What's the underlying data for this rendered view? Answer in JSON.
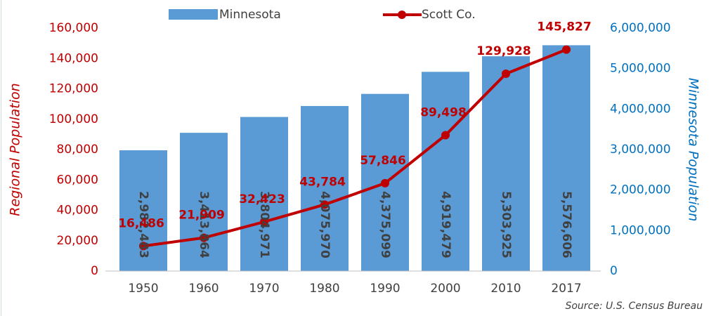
{
  "chart_data": {
    "type": "combo",
    "categories": [
      "1950",
      "1960",
      "1970",
      "1980",
      "1990",
      "2000",
      "2010",
      "2017"
    ],
    "series": [
      {
        "name": "Minnesota",
        "type": "bar",
        "axis": "y2",
        "color": "#5b9bd5",
        "values": [
          2982483,
          3413864,
          3804971,
          4075970,
          4375099,
          4919479,
          5303925,
          5576606
        ],
        "value_labels": [
          "2,982,483",
          "3,413,864",
          "3,804,971",
          "4,075,970",
          "4,375,099",
          "4,919,479",
          "5,303,925",
          "5,576,606"
        ]
      },
      {
        "name": "Scott Co.",
        "type": "line",
        "axis": "y",
        "color": "#c00000",
        "values": [
          16486,
          21909,
          32423,
          43784,
          57846,
          89498,
          129928,
          145827
        ],
        "value_labels": [
          "16,486",
          "21,909",
          "32,423",
          "43,784",
          "57,846",
          "89,498",
          "129,928",
          "145,827"
        ]
      }
    ],
    "ylabel": "Regional Population",
    "y2label": "Minnesota Population",
    "ylim": [
      0,
      160000
    ],
    "yticks": [
      0,
      {
        "value": 20000,
        "label": "20,000"
      },
      {
        "value": 40000,
        "label": "40,000"
      },
      {
        "value": 60000,
        "label": "60,000"
      },
      {
        "value": 80000,
        "label": "80,000"
      },
      {
        "value": 100000,
        "label": "100,000"
      },
      {
        "value": 120000,
        "label": "120,000"
      },
      {
        "value": 140000,
        "label": "140,000"
      },
      {
        "value": 160000,
        "label": "160,000"
      }
    ],
    "y2lim": [
      0,
      6000000
    ],
    "y2ticks": [
      0,
      {
        "value": 1000000,
        "label": "1,000,000"
      },
      {
        "value": 2000000,
        "label": "2,000,000"
      },
      {
        "value": 3000000,
        "label": "3,000,000"
      },
      {
        "value": 4000000,
        "label": "4,000,000"
      },
      {
        "value": 5000000,
        "label": "5,000,000"
      },
      {
        "value": 6000000,
        "label": "6,000,000"
      }
    ],
    "ytick_color": "#c00000",
    "y2tick_color": "#0070c0",
    "grid": false,
    "legend": "top",
    "source": "Source: U.S. Census Bureau"
  }
}
